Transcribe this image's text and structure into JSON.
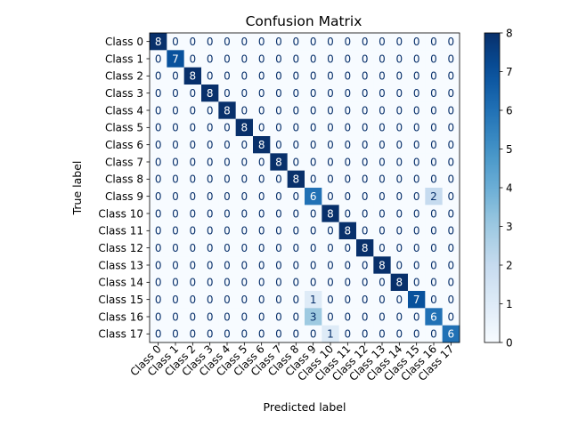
{
  "chart_data": {
    "type": "heatmap",
    "title": "Confusion Matrix",
    "xlabel": "Predicted label",
    "ylabel": "True label",
    "x_categories": [
      "Class 0",
      "Class 1",
      "Class 2",
      "Class 3",
      "Class 4",
      "Class 5",
      "Class 6",
      "Class 7",
      "Class 8",
      "Class 9",
      "Class 10",
      "Class 11",
      "Class 12",
      "Class 13",
      "Class 14",
      "Class 15",
      "Class 16",
      "Class 17"
    ],
    "y_categories": [
      "Class 0",
      "Class 1",
      "Class 2",
      "Class 3",
      "Class 4",
      "Class 5",
      "Class 6",
      "Class 7",
      "Class 8",
      "Class 9",
      "Class 10",
      "Class 11",
      "Class 12",
      "Class 13",
      "Class 14",
      "Class 15",
      "Class 16",
      "Class 17"
    ],
    "matrix": [
      [
        8,
        0,
        0,
        0,
        0,
        0,
        0,
        0,
        0,
        0,
        0,
        0,
        0,
        0,
        0,
        0,
        0,
        0
      ],
      [
        0,
        7,
        0,
        0,
        0,
        0,
        0,
        0,
        0,
        0,
        0,
        0,
        0,
        0,
        0,
        0,
        0,
        0
      ],
      [
        0,
        0,
        8,
        0,
        0,
        0,
        0,
        0,
        0,
        0,
        0,
        0,
        0,
        0,
        0,
        0,
        0,
        0
      ],
      [
        0,
        0,
        0,
        8,
        0,
        0,
        0,
        0,
        0,
        0,
        0,
        0,
        0,
        0,
        0,
        0,
        0,
        0
      ],
      [
        0,
        0,
        0,
        0,
        8,
        0,
        0,
        0,
        0,
        0,
        0,
        0,
        0,
        0,
        0,
        0,
        0,
        0
      ],
      [
        0,
        0,
        0,
        0,
        0,
        8,
        0,
        0,
        0,
        0,
        0,
        0,
        0,
        0,
        0,
        0,
        0,
        0
      ],
      [
        0,
        0,
        0,
        0,
        0,
        0,
        8,
        0,
        0,
        0,
        0,
        0,
        0,
        0,
        0,
        0,
        0,
        0
      ],
      [
        0,
        0,
        0,
        0,
        0,
        0,
        0,
        8,
        0,
        0,
        0,
        0,
        0,
        0,
        0,
        0,
        0,
        0
      ],
      [
        0,
        0,
        0,
        0,
        0,
        0,
        0,
        0,
        8,
        0,
        0,
        0,
        0,
        0,
        0,
        0,
        0,
        0
      ],
      [
        0,
        0,
        0,
        0,
        0,
        0,
        0,
        0,
        0,
        6,
        0,
        0,
        0,
        0,
        0,
        0,
        2,
        0
      ],
      [
        0,
        0,
        0,
        0,
        0,
        0,
        0,
        0,
        0,
        0,
        8,
        0,
        0,
        0,
        0,
        0,
        0,
        0
      ],
      [
        0,
        0,
        0,
        0,
        0,
        0,
        0,
        0,
        0,
        0,
        0,
        8,
        0,
        0,
        0,
        0,
        0,
        0
      ],
      [
        0,
        0,
        0,
        0,
        0,
        0,
        0,
        0,
        0,
        0,
        0,
        0,
        8,
        0,
        0,
        0,
        0,
        0
      ],
      [
        0,
        0,
        0,
        0,
        0,
        0,
        0,
        0,
        0,
        0,
        0,
        0,
        0,
        8,
        0,
        0,
        0,
        0
      ],
      [
        0,
        0,
        0,
        0,
        0,
        0,
        0,
        0,
        0,
        0,
        0,
        0,
        0,
        0,
        8,
        0,
        0,
        0
      ],
      [
        0,
        0,
        0,
        0,
        0,
        0,
        0,
        0,
        0,
        1,
        0,
        0,
        0,
        0,
        0,
        7,
        0,
        0
      ],
      [
        0,
        0,
        0,
        0,
        0,
        0,
        0,
        0,
        0,
        3,
        0,
        0,
        0,
        0,
        0,
        0,
        6,
        0
      ],
      [
        0,
        0,
        0,
        0,
        0,
        0,
        0,
        0,
        0,
        0,
        1,
        0,
        0,
        0,
        0,
        0,
        0,
        6
      ]
    ],
    "vmin": 0,
    "vmax": 8,
    "colormap": "Blues",
    "colorbar_ticks": [
      0,
      1,
      2,
      3,
      4,
      5,
      6,
      7,
      8
    ],
    "grid": false,
    "legend": "colorbar-right"
  }
}
